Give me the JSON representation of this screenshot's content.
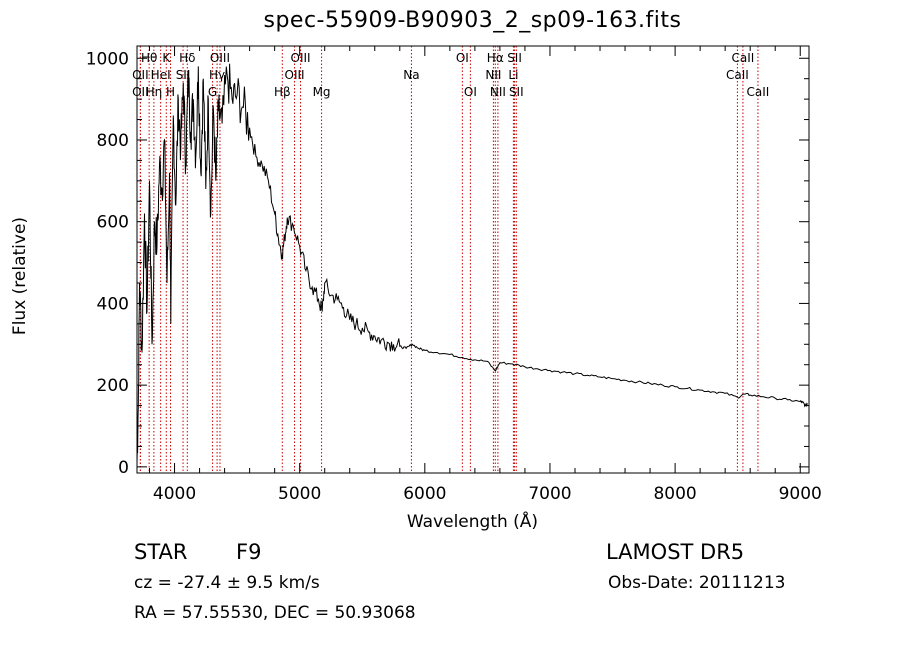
{
  "title": "spec-55909-B90903_2_sp09-163.fits",
  "footer": {
    "object_class": "STAR",
    "subclass": "F9",
    "survey": "LAMOST DR5",
    "cz": "cz = -27.4 ± 9.5 km/s",
    "obs_date": "Obs-Date: 20111213",
    "coords": "RA =  57.55530, DEC =  50.93068"
  },
  "chart_data": {
    "type": "line",
    "xlabel": "Wavelength (Å)",
    "ylabel": "Flux (relative)",
    "xlim": [
      3700,
      9070
    ],
    "ylim": [
      -15,
      1030
    ],
    "xticks": [
      4000,
      5000,
      6000,
      7000,
      8000,
      9000
    ],
    "yticks": [
      0,
      200,
      400,
      600,
      800,
      1000
    ],
    "colors": {
      "spectrum": "#000000",
      "line_markers": "#cc0000",
      "axes": "#000000"
    },
    "series": [
      {
        "x": [
          3700,
          3710,
          3720,
          3740,
          3760,
          3780,
          3800,
          3820,
          3840,
          3860,
          3880,
          3900,
          3920,
          3940,
          3960,
          3970,
          3990,
          4010,
          4030,
          4050,
          4070,
          4090,
          4110,
          4130,
          4150,
          4170,
          4190,
          4210,
          4230,
          4250,
          4270,
          4290,
          4310,
          4330,
          4350,
          4380,
          4420,
          4460,
          4500,
          4550,
          4600,
          4650,
          4700,
          4750,
          4800,
          4830,
          4860,
          4880,
          4900,
          4950,
          5000,
          5050,
          5100,
          5150,
          5180,
          5200,
          5250,
          5300,
          5350,
          5400,
          5450,
          5500,
          5550,
          5600,
          5650,
          5700,
          5750,
          5800,
          5850,
          5900,
          5950,
          6000,
          6100,
          6200,
          6300,
          6400,
          6500,
          6563,
          6600,
          6700,
          6800,
          6900,
          7000,
          7100,
          7200,
          7300,
          7400,
          7500,
          7600,
          7700,
          7800,
          7900,
          8000,
          8100,
          8200,
          8300,
          8400,
          8500,
          8550,
          8600,
          8700,
          8800,
          8900,
          9000,
          9020,
          9040,
          9060
        ],
        "y": [
          10,
          150,
          450,
          280,
          620,
          380,
          700,
          300,
          600,
          540,
          740,
          680,
          800,
          450,
          720,
          350,
          860,
          640,
          900,
          780,
          940,
          740,
          960,
          820,
          900,
          760,
          980,
          720,
          950,
          680,
          900,
          620,
          880,
          700,
          870,
          840,
          960,
          900,
          910,
          880,
          830,
          760,
          740,
          700,
          620,
          560,
          520,
          560,
          610,
          590,
          540,
          480,
          440,
          410,
          380,
          450,
          420,
          410,
          390,
          360,
          350,
          340,
          330,
          320,
          310,
          305,
          300,
          295,
          290,
          300,
          290,
          285,
          280,
          275,
          268,
          262,
          258,
          235,
          255,
          252,
          245,
          240,
          236,
          232,
          228,
          224,
          220,
          216,
          212,
          208,
          204,
          200,
          196,
          192,
          188,
          184,
          180,
          170,
          178,
          176,
          172,
          168,
          164,
          160,
          158,
          150,
          155
        ]
      }
    ],
    "line_markers": [
      {
        "label": "Hθ",
        "wave": 3797,
        "row": 0
      },
      {
        "label": "OII",
        "wave": 3727,
        "row": 2
      },
      {
        "label": "OII",
        "wave": 3727,
        "row": 1
      },
      {
        "label": "Hη",
        "wave": 3835,
        "row": 2
      },
      {
        "label": "HeI",
        "wave": 3889,
        "row": 1
      },
      {
        "label": "K",
        "wave": 3934,
        "row": 0
      },
      {
        "label": "H",
        "wave": 3968,
        "row": 2
      },
      {
        "label": "Hδ",
        "wave": 4102,
        "row": 0
      },
      {
        "label": "SII",
        "wave": 4068,
        "row": 1
      },
      {
        "label": "OIII",
        "wave": 4363,
        "row": 0
      },
      {
        "label": "Hγ",
        "wave": 4340,
        "row": 1
      },
      {
        "label": "G",
        "wave": 4304,
        "row": 2
      },
      {
        "label": "Hβ",
        "wave": 4861,
        "row": 2
      },
      {
        "label": "OIII",
        "wave": 5007,
        "row": 0
      },
      {
        "label": "OIII",
        "wave": 4959,
        "row": 1
      },
      {
        "label": "Mg",
        "wave": 5175,
        "row": 2
      },
      {
        "label": "Na",
        "wave": 5893,
        "row": 1
      },
      {
        "label": "OI",
        "wave": 6300,
        "row": 0
      },
      {
        "label": "OI",
        "wave": 6364,
        "row": 2
      },
      {
        "label": "Hα",
        "wave": 6563,
        "row": 0
      },
      {
        "label": "NII",
        "wave": 6548,
        "row": 1
      },
      {
        "label": "NII",
        "wave": 6584,
        "row": 2
      },
      {
        "label": "SII",
        "wave": 6717,
        "row": 0
      },
      {
        "label": "Li",
        "wave": 6708,
        "row": 1
      },
      {
        "label": "SII",
        "wave": 6731,
        "row": 2
      },
      {
        "label": "CaII",
        "wave": 8542,
        "row": 0
      },
      {
        "label": "CaII",
        "wave": 8498,
        "row": 1
      },
      {
        "label": "CaII",
        "wave": 8662,
        "row": 2
      }
    ]
  }
}
